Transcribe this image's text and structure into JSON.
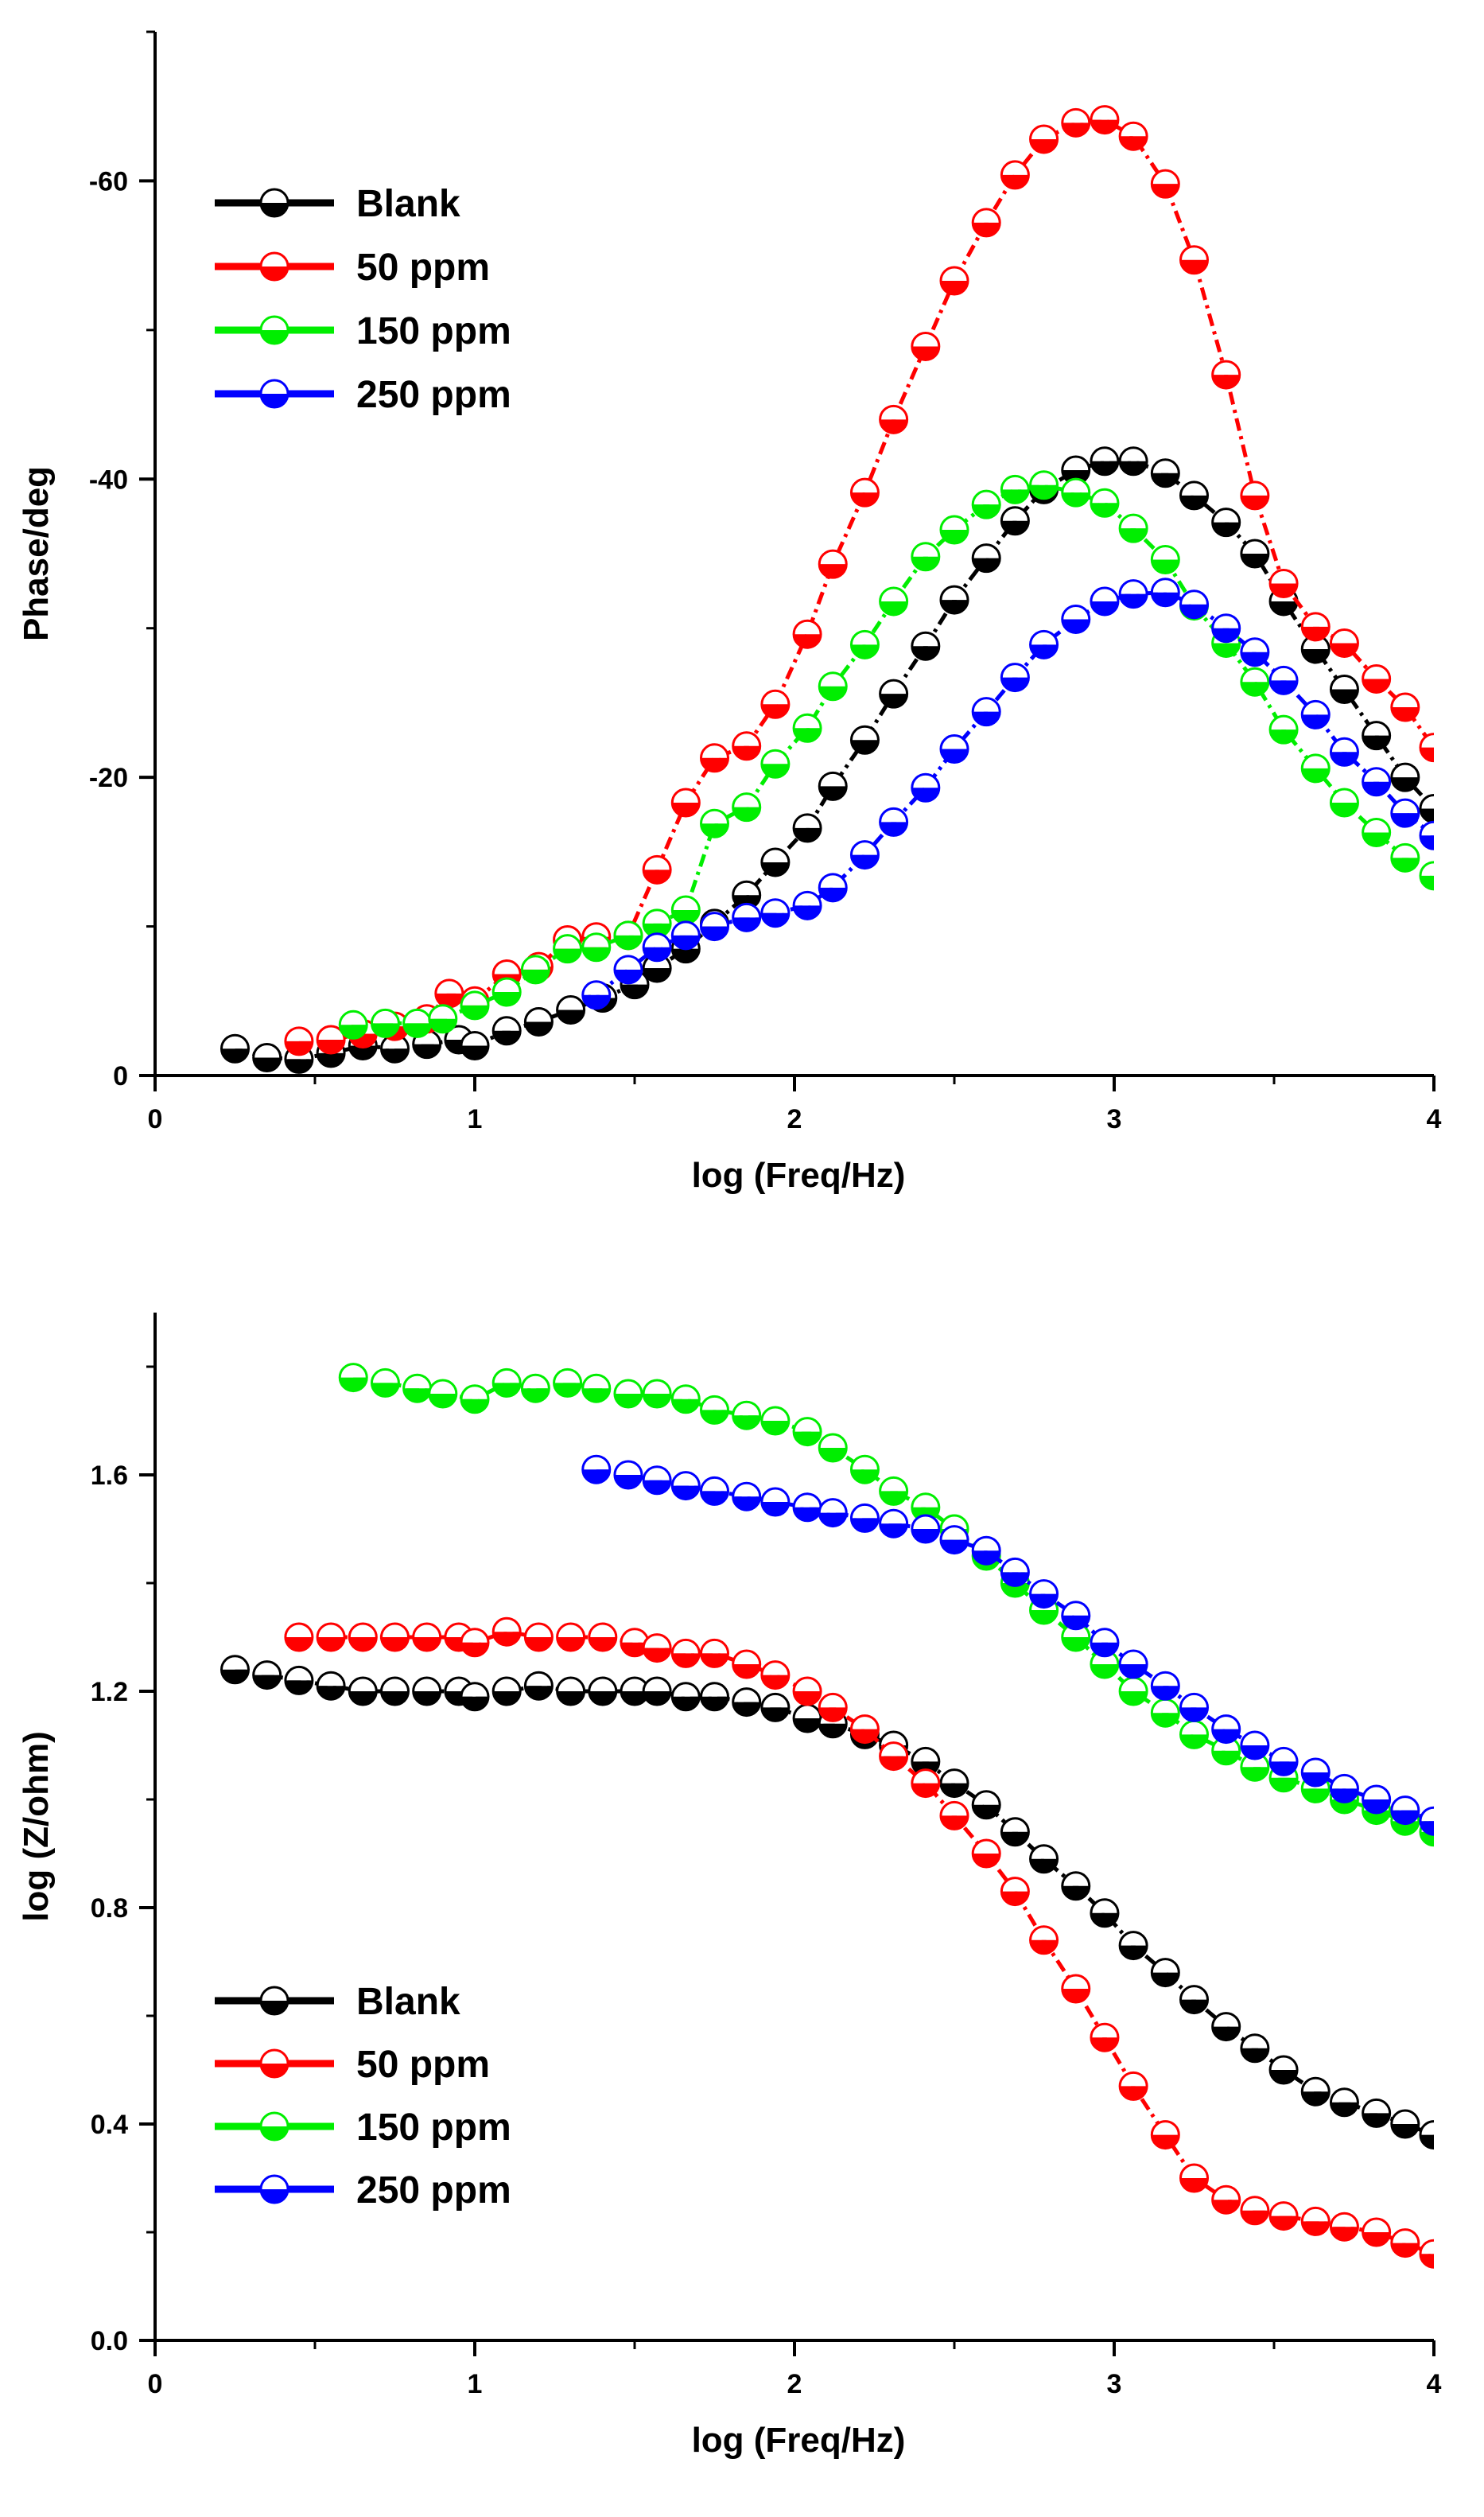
{
  "chart_data": [
    {
      "type": "line",
      "id": "phase",
      "xlabel": "log (Freq/Hz)",
      "ylabel": "Phase/deg",
      "xlim": [
        0,
        4
      ],
      "ylim": [
        0,
        -70
      ],
      "y_inverted": true,
      "xticks": [
        0,
        1,
        2,
        3,
        4
      ],
      "xtick_labels": [
        "0",
        "1",
        "2",
        "3",
        "4"
      ],
      "yticks": [
        0,
        -20,
        -40,
        -60
      ],
      "ytick_labels": [
        "0",
        "-20",
        "-40",
        "-60"
      ],
      "legend_position": "top-left",
      "series": [
        {
          "name": "Blank",
          "color": "#000000",
          "x": [
            0.25,
            0.35,
            0.45,
            0.55,
            0.65,
            0.75,
            0.85,
            0.95,
            1.0,
            1.1,
            1.2,
            1.3,
            1.4,
            1.5,
            1.57,
            1.66,
            1.75,
            1.85,
            1.94,
            2.04,
            2.12,
            2.22,
            2.31,
            2.41,
            2.5,
            2.6,
            2.69,
            2.78,
            2.88,
            2.97,
            3.06,
            3.16,
            3.25,
            3.35,
            3.44,
            3.53,
            3.63,
            3.72,
            3.82,
            3.91,
            4.0
          ],
          "y": [
            -1.8,
            -1.2,
            -1.1,
            -1.5,
            -2.0,
            -1.8,
            -2.1,
            -2.4,
            -2.0,
            -3.0,
            -3.6,
            -4.4,
            -5.2,
            -6.1,
            -7.2,
            -8.5,
            -10.2,
            -12.1,
            -14.3,
            -16.6,
            -19.4,
            -22.5,
            -25.6,
            -28.8,
            -31.9,
            -34.7,
            -37.2,
            -39.3,
            -40.6,
            -41.2,
            -41.2,
            -40.4,
            -38.9,
            -37.1,
            -35.0,
            -31.8,
            -28.6,
            -25.9,
            -22.8,
            -20.0,
            -17.9
          ]
        },
        {
          "name": "50 ppm",
          "color": "#ff0000",
          "x": [
            0.45,
            0.55,
            0.65,
            0.75,
            0.85,
            0.92,
            1.0,
            1.1,
            1.2,
            1.29,
            1.38,
            1.48,
            1.57,
            1.66,
            1.75,
            1.85,
            1.94,
            2.04,
            2.12,
            2.22,
            2.31,
            2.41,
            2.5,
            2.6,
            2.69,
            2.78,
            2.88,
            2.97,
            3.06,
            3.16,
            3.25,
            3.35,
            3.44,
            3.53,
            3.63,
            3.72,
            3.82,
            3.91,
            4.0
          ],
          "y": [
            -2.3,
            -2.4,
            -2.8,
            -3.3,
            -3.8,
            -5.5,
            -5.0,
            -6.8,
            -7.3,
            -9.1,
            -9.3,
            -9.4,
            -13.8,
            -18.3,
            -21.3,
            -22.1,
            -24.9,
            -29.6,
            -34.3,
            -39.1,
            -44.0,
            -48.9,
            -53.3,
            -57.2,
            -60.4,
            -62.8,
            -63.9,
            -64.1,
            -63.0,
            -59.8,
            -54.7,
            -47.0,
            -38.9,
            -33.0,
            -30.1,
            -29.0,
            -26.6,
            -24.7,
            -22.0
          ]
        },
        {
          "name": "150 ppm",
          "color": "#00ee00",
          "x": [
            0.62,
            0.72,
            0.82,
            0.9,
            1.0,
            1.1,
            1.19,
            1.29,
            1.38,
            1.48,
            1.57,
            1.66,
            1.75,
            1.85,
            1.94,
            2.04,
            2.12,
            2.22,
            2.31,
            2.41,
            2.5,
            2.6,
            2.69,
            2.78,
            2.88,
            2.97,
            3.06,
            3.16,
            3.25,
            3.35,
            3.44,
            3.53,
            3.63,
            3.72,
            3.82,
            3.91,
            4.0
          ],
          "y": [
            -3.4,
            -3.5,
            -3.5,
            -3.8,
            -4.7,
            -5.6,
            -7.1,
            -8.5,
            -8.6,
            -9.4,
            -10.2,
            -11.1,
            -16.9,
            -18.0,
            -20.9,
            -23.3,
            -26.1,
            -28.9,
            -31.8,
            -34.8,
            -36.6,
            -38.3,
            -39.3,
            -39.6,
            -39.1,
            -38.4,
            -36.7,
            -34.6,
            -31.5,
            -29.0,
            -26.4,
            -23.2,
            -20.6,
            -18.3,
            -16.3,
            -14.6,
            -13.4
          ]
        },
        {
          "name": "250 ppm",
          "color": "#0000ff",
          "x": [
            1.38,
            1.48,
            1.57,
            1.66,
            1.75,
            1.85,
            1.94,
            2.04,
            2.12,
            2.22,
            2.31,
            2.41,
            2.5,
            2.6,
            2.69,
            2.78,
            2.88,
            2.97,
            3.06,
            3.16,
            3.25,
            3.35,
            3.44,
            3.53,
            3.63,
            3.72,
            3.82,
            3.91,
            4.0
          ],
          "y": [
            -5.4,
            -7.1,
            -8.6,
            -9.4,
            -10.0,
            -10.6,
            -10.9,
            -11.4,
            -12.6,
            -14.8,
            -17.0,
            -19.3,
            -21.9,
            -24.4,
            -26.7,
            -28.9,
            -30.6,
            -31.8,
            -32.3,
            -32.4,
            -31.6,
            -30.0,
            -28.4,
            -26.5,
            -24.2,
            -21.7,
            -19.7,
            -17.6,
            -16.1
          ]
        }
      ]
    },
    {
      "type": "line",
      "id": "impedance",
      "xlabel": "log (Freq/Hz)",
      "ylabel": "log (Z/ohm)",
      "xlim": [
        0,
        4
      ],
      "ylim": [
        0,
        1.9
      ],
      "y_inverted": false,
      "xticks": [
        0,
        1,
        2,
        3,
        4
      ],
      "xtick_labels": [
        "0",
        "1",
        "2",
        "3",
        "4"
      ],
      "yticks": [
        0,
        0.4,
        0.8,
        1.2,
        1.6
      ],
      "ytick_labels": [
        "0.0",
        "0.4",
        "0.8",
        "1.2",
        "1.6"
      ],
      "legend_position": "bottom-left",
      "series": [
        {
          "name": "Blank",
          "color": "#000000",
          "x": [
            0.25,
            0.35,
            0.45,
            0.55,
            0.65,
            0.75,
            0.85,
            0.95,
            1.0,
            1.1,
            1.2,
            1.3,
            1.4,
            1.5,
            1.57,
            1.66,
            1.75,
            1.85,
            1.94,
            2.04,
            2.12,
            2.22,
            2.31,
            2.41,
            2.5,
            2.6,
            2.69,
            2.78,
            2.88,
            2.97,
            3.06,
            3.16,
            3.25,
            3.35,
            3.44,
            3.53,
            3.63,
            3.72,
            3.82,
            3.91,
            4.0
          ],
          "y": [
            1.24,
            1.23,
            1.22,
            1.21,
            1.2,
            1.2,
            1.2,
            1.2,
            1.19,
            1.2,
            1.21,
            1.2,
            1.2,
            1.2,
            1.2,
            1.19,
            1.19,
            1.18,
            1.17,
            1.15,
            1.14,
            1.12,
            1.1,
            1.07,
            1.03,
            0.99,
            0.94,
            0.89,
            0.84,
            0.79,
            0.73,
            0.68,
            0.63,
            0.58,
            0.54,
            0.5,
            0.46,
            0.44,
            0.42,
            0.4,
            0.38
          ]
        },
        {
          "name": "50 ppm",
          "color": "#ff0000",
          "x": [
            0.45,
            0.55,
            0.65,
            0.75,
            0.85,
            0.95,
            1.0,
            1.1,
            1.2,
            1.3,
            1.4,
            1.5,
            1.57,
            1.66,
            1.75,
            1.85,
            1.94,
            2.04,
            2.12,
            2.22,
            2.31,
            2.41,
            2.5,
            2.6,
            2.69,
            2.78,
            2.88,
            2.97,
            3.06,
            3.16,
            3.25,
            3.35,
            3.44,
            3.53,
            3.63,
            3.72,
            3.82,
            3.91,
            4.0
          ],
          "y": [
            1.3,
            1.3,
            1.3,
            1.3,
            1.3,
            1.3,
            1.29,
            1.31,
            1.3,
            1.3,
            1.3,
            1.29,
            1.28,
            1.27,
            1.27,
            1.25,
            1.23,
            1.2,
            1.17,
            1.13,
            1.08,
            1.03,
            0.97,
            0.9,
            0.83,
            0.74,
            0.65,
            0.56,
            0.47,
            0.38,
            0.3,
            0.26,
            0.24,
            0.23,
            0.22,
            0.21,
            0.2,
            0.18,
            0.16
          ]
        },
        {
          "name": "150 ppm",
          "color": "#00ee00",
          "x": [
            0.62,
            0.72,
            0.82,
            0.9,
            1.0,
            1.1,
            1.19,
            1.29,
            1.38,
            1.48,
            1.57,
            1.66,
            1.75,
            1.85,
            1.94,
            2.04,
            2.12,
            2.22,
            2.31,
            2.41,
            2.5,
            2.6,
            2.69,
            2.78,
            2.88,
            2.97,
            3.06,
            3.16,
            3.25,
            3.35,
            3.44,
            3.53,
            3.63,
            3.72,
            3.82,
            3.91,
            4.0
          ],
          "y": [
            1.78,
            1.77,
            1.76,
            1.75,
            1.74,
            1.77,
            1.76,
            1.77,
            1.76,
            1.75,
            1.75,
            1.74,
            1.72,
            1.71,
            1.7,
            1.68,
            1.65,
            1.61,
            1.57,
            1.54,
            1.5,
            1.45,
            1.4,
            1.35,
            1.3,
            1.25,
            1.2,
            1.16,
            1.12,
            1.09,
            1.06,
            1.04,
            1.02,
            1.0,
            0.98,
            0.96,
            0.94
          ]
        },
        {
          "name": "250 ppm",
          "color": "#0000ff",
          "x": [
            1.38,
            1.48,
            1.57,
            1.66,
            1.75,
            1.85,
            1.94,
            2.04,
            2.12,
            2.22,
            2.31,
            2.41,
            2.5,
            2.6,
            2.69,
            2.78,
            2.88,
            2.97,
            3.06,
            3.16,
            3.25,
            3.35,
            3.44,
            3.53,
            3.63,
            3.72,
            3.82,
            3.91,
            4.0
          ],
          "y": [
            1.61,
            1.6,
            1.59,
            1.58,
            1.57,
            1.56,
            1.55,
            1.54,
            1.53,
            1.52,
            1.51,
            1.5,
            1.48,
            1.46,
            1.42,
            1.38,
            1.34,
            1.29,
            1.25,
            1.21,
            1.17,
            1.13,
            1.1,
            1.07,
            1.05,
            1.02,
            1.0,
            0.98,
            0.96
          ]
        }
      ]
    }
  ]
}
